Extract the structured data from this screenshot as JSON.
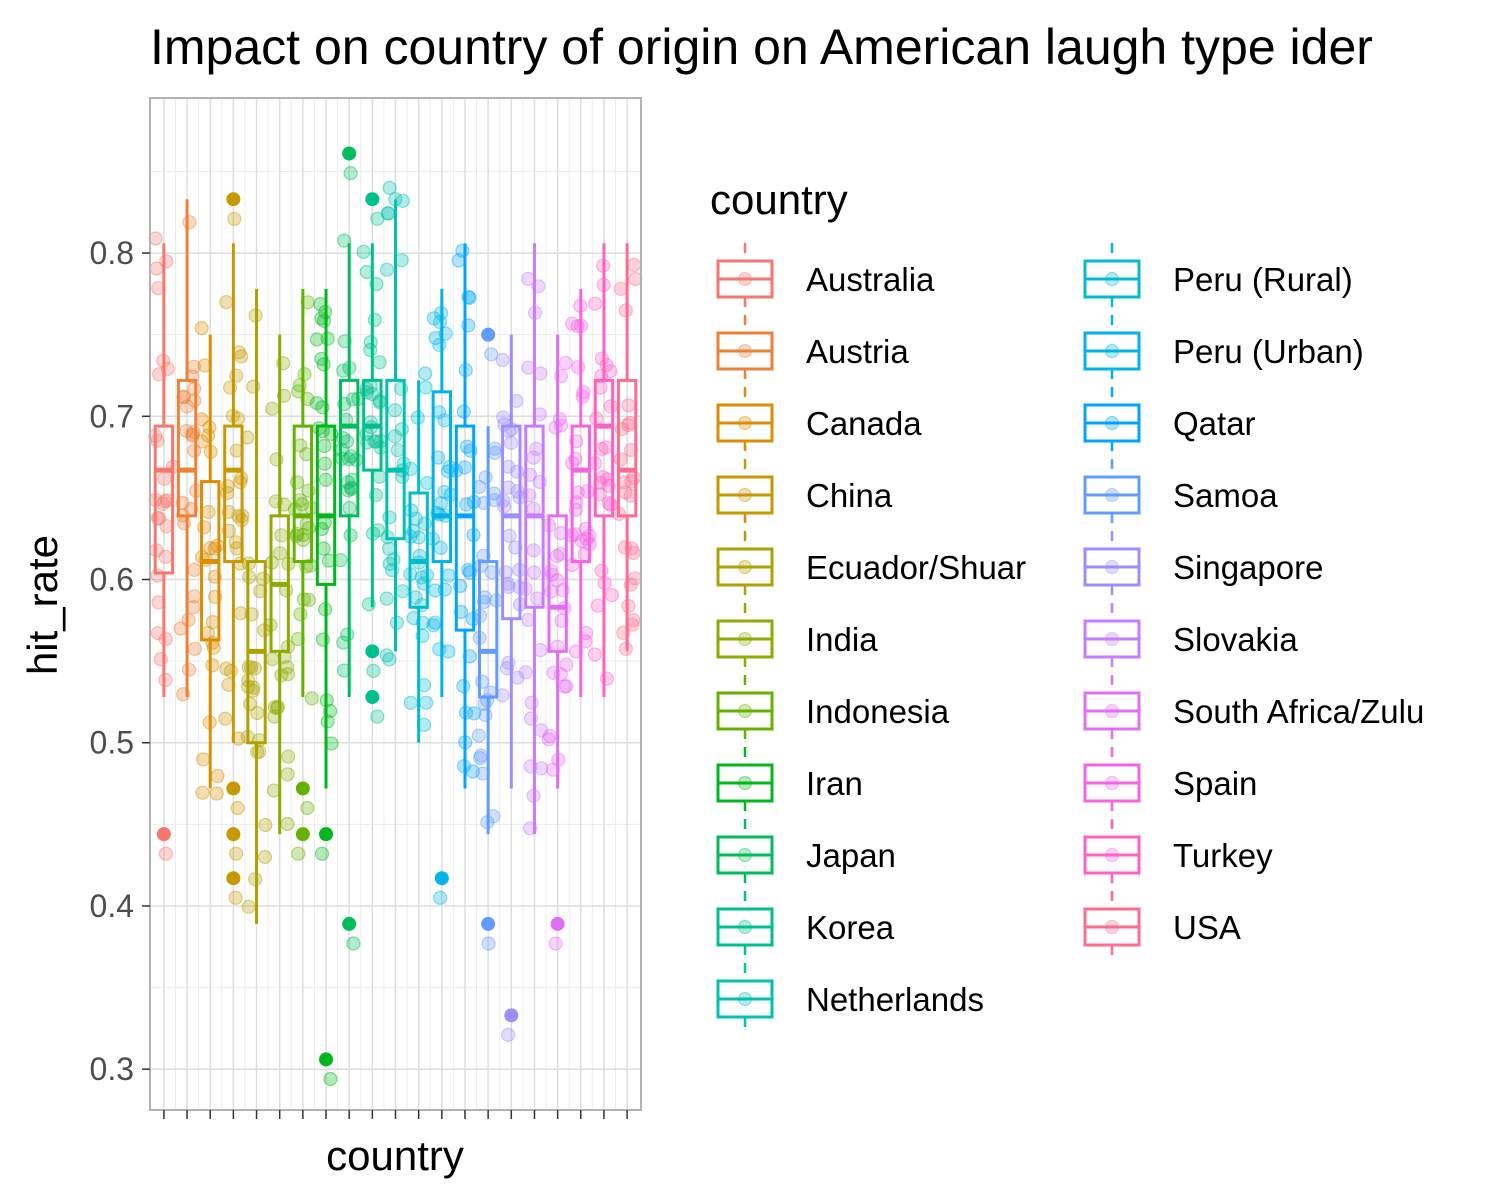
{
  "chart_data": {
    "type": "box",
    "title": "Impact on country of origin on American laugh type ider",
    "xlabel": "country",
    "ylabel": "hit_rate",
    "ylim": [
      0.275,
      0.895
    ],
    "yticks": [
      0.3,
      0.4,
      0.5,
      0.6,
      0.7,
      0.8
    ],
    "grid": true,
    "legend": {
      "title": "country",
      "position": "right",
      "columns": 2
    },
    "jitter_points": "semi-transparent individual observations overlaid on each box",
    "series": [
      {
        "name": "Australia",
        "color": "#F8766D",
        "min": 0.528,
        "q1": 0.604,
        "median": 0.667,
        "q3": 0.694,
        "max": 0.806,
        "outliers": [
          0.444
        ]
      },
      {
        "name": "Austria",
        "color": "#EC8239",
        "min": 0.528,
        "q1": 0.639,
        "median": 0.667,
        "q3": 0.722,
        "max": 0.833,
        "outliers": []
      },
      {
        "name": "Canada",
        "color": "#DB8E00",
        "min": 0.472,
        "q1": 0.563,
        "median": 0.611,
        "q3": 0.66,
        "max": 0.75,
        "outliers": []
      },
      {
        "name": "China",
        "color": "#C79800",
        "min": 0.5,
        "q1": 0.611,
        "median": 0.667,
        "q3": 0.694,
        "max": 0.806,
        "outliers": [
          0.833,
          0.472,
          0.444,
          0.417
        ]
      },
      {
        "name": "Ecuador/Shuar",
        "color": "#AEA200",
        "min": 0.389,
        "q1": 0.5,
        "median": 0.556,
        "q3": 0.611,
        "max": 0.778,
        "outliers": []
      },
      {
        "name": "India",
        "color": "#8FAA00",
        "min": 0.444,
        "q1": 0.556,
        "median": 0.597,
        "q3": 0.639,
        "max": 0.75,
        "outliers": []
      },
      {
        "name": "Indonesia",
        "color": "#64B200",
        "min": 0.528,
        "q1": 0.611,
        "median": 0.639,
        "q3": 0.694,
        "max": 0.778,
        "outliers": [
          0.472,
          0.444
        ]
      },
      {
        "name": "Iran",
        "color": "#00B81B",
        "min": 0.472,
        "q1": 0.597,
        "median": 0.639,
        "q3": 0.694,
        "max": 0.778,
        "outliers": [
          0.444,
          0.306
        ]
      },
      {
        "name": "Japan",
        "color": "#00BD5C",
        "min": 0.528,
        "q1": 0.639,
        "median": 0.694,
        "q3": 0.722,
        "max": 0.806,
        "outliers": [
          0.861,
          0.389
        ]
      },
      {
        "name": "Korea",
        "color": "#00C08E",
        "min": 0.583,
        "q1": 0.667,
        "median": 0.694,
        "q3": 0.722,
        "max": 0.806,
        "outliers": [
          0.833,
          0.556,
          0.528
        ]
      },
      {
        "name": "Netherlands",
        "color": "#00C1B2",
        "min": 0.556,
        "q1": 0.625,
        "median": 0.667,
        "q3": 0.722,
        "max": 0.833,
        "outliers": []
      },
      {
        "name": "Peru (Rural)",
        "color": "#00BCD1",
        "min": 0.5,
        "q1": 0.583,
        "median": 0.611,
        "q3": 0.653,
        "max": 0.722,
        "outliers": []
      },
      {
        "name": "Peru (Urban)",
        "color": "#00B3E9",
        "min": 0.528,
        "q1": 0.611,
        "median": 0.639,
        "q3": 0.715,
        "max": 0.778,
        "outliers": [
          0.417
        ]
      },
      {
        "name": "Qatar",
        "color": "#00A5FF",
        "min": 0.472,
        "q1": 0.569,
        "median": 0.639,
        "q3": 0.694,
        "max": 0.806,
        "outliers": []
      },
      {
        "name": "Samoa",
        "color": "#619CFF",
        "min": 0.444,
        "q1": 0.528,
        "median": 0.556,
        "q3": 0.611,
        "max": 0.694,
        "outliers": [
          0.75,
          0.389
        ]
      },
      {
        "name": "Singapore",
        "color": "#9F8CFF",
        "min": 0.472,
        "q1": 0.576,
        "median": 0.639,
        "q3": 0.694,
        "max": 0.75,
        "outliers": [
          0.333
        ]
      },
      {
        "name": "Slovakia",
        "color": "#C77CFF",
        "min": 0.444,
        "q1": 0.583,
        "median": 0.639,
        "q3": 0.694,
        "max": 0.806,
        "outliers": []
      },
      {
        "name": "South Africa/Zulu",
        "color": "#E36EF6",
        "min": 0.472,
        "q1": 0.556,
        "median": 0.583,
        "q3": 0.639,
        "max": 0.75,
        "outliers": [
          0.389
        ]
      },
      {
        "name": "Spain",
        "color": "#F564E3",
        "min": 0.528,
        "q1": 0.611,
        "median": 0.667,
        "q3": 0.694,
        "max": 0.778,
        "outliers": []
      },
      {
        "name": "Turkey",
        "color": "#FF61C3",
        "min": 0.528,
        "q1": 0.639,
        "median": 0.694,
        "q3": 0.722,
        "max": 0.806,
        "outliers": []
      },
      {
        "name": "USA",
        "color": "#FF6C91",
        "min": 0.556,
        "q1": 0.639,
        "median": 0.667,
        "q3": 0.722,
        "max": 0.806,
        "outliers": []
      }
    ]
  }
}
